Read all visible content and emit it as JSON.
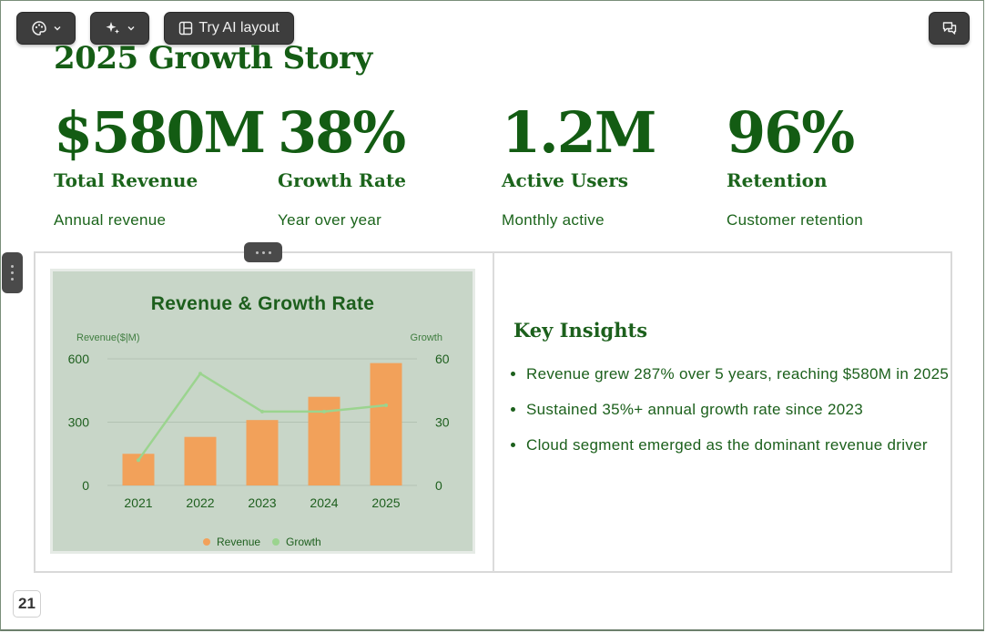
{
  "toolbar": {
    "ai_layout_label": "Try AI layout"
  },
  "slide": {
    "title": "2025 Growth Story",
    "stats": [
      {
        "value": "$580M",
        "label": "Total Revenue",
        "sub": "Annual revenue"
      },
      {
        "value": "38%",
        "label": "Growth Rate",
        "sub": "Year over year"
      },
      {
        "value": "1.2M",
        "label": "Active Users",
        "sub": "Monthly active"
      },
      {
        "value": "96%",
        "label": "Retention",
        "sub": "Customer retention"
      }
    ],
    "insights_title": "Key Insights",
    "insights": [
      "Revenue grew 287% over 5 years, reaching $580M in 2025",
      "Sustained 35%+ annual growth rate since 2023",
      "Cloud segment emerged as the dominant revenue driver"
    ],
    "page_number": "21"
  },
  "colors": {
    "accent": "#155d15",
    "bar": "#f2a15a",
    "line": "#9bd48f",
    "card": "#c8d6c8"
  },
  "chart_data": {
    "type": "bar",
    "title": "Revenue & Growth Rate",
    "categories": [
      "2021",
      "2022",
      "2023",
      "2024",
      "2025"
    ],
    "series": [
      {
        "name": "Revenue",
        "type": "bar",
        "axis": "left",
        "values": [
          150,
          230,
          310,
          420,
          580
        ]
      },
      {
        "name": "Growth",
        "type": "line",
        "axis": "right",
        "values": [
          12,
          53,
          35,
          35,
          38
        ]
      }
    ],
    "ylabel": "Revenue($|M)",
    "y2label": "Growth",
    "ylim": [
      0,
      600
    ],
    "y2lim": [
      0,
      60
    ],
    "yticks": [
      "0",
      "300",
      "600"
    ],
    "y2ticks": [
      "0",
      "30",
      "60"
    ],
    "grid": true,
    "legend": "bottom"
  }
}
